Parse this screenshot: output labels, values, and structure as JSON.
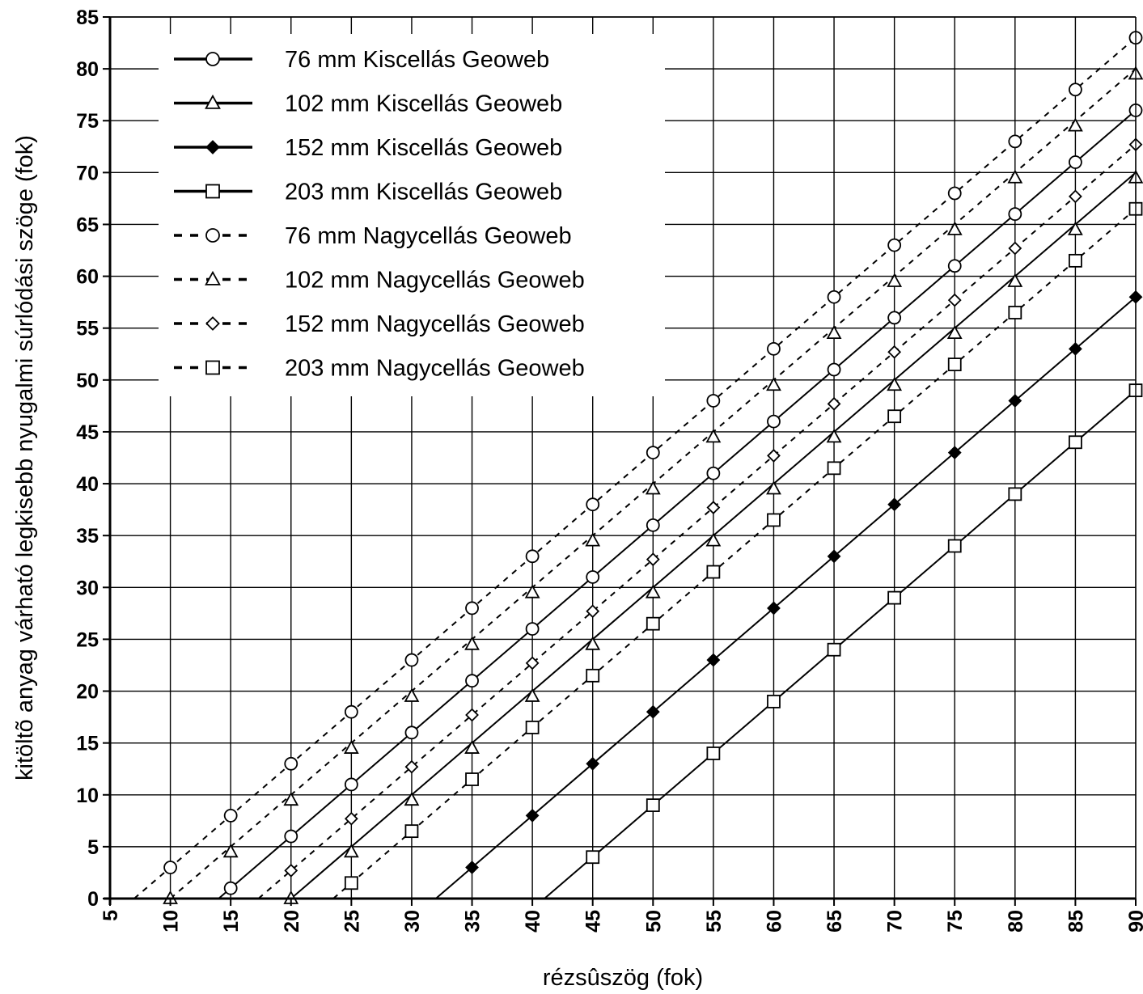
{
  "chart_data": {
    "type": "line",
    "title": "",
    "xlabel": "rézsûszög (fok)",
    "ylabel": "kitöltõ anyag várható legkisebb nyugalmi súrlódási szöge (fok)",
    "xlim": [
      5,
      90
    ],
    "ylim": [
      0,
      85
    ],
    "xticks": [
      5,
      10,
      15,
      20,
      25,
      30,
      35,
      40,
      45,
      50,
      55,
      60,
      65,
      70,
      75,
      80,
      85,
      90
    ],
    "yticks": [
      0,
      5,
      10,
      15,
      20,
      25,
      30,
      35,
      40,
      45,
      50,
      55,
      60,
      65,
      70,
      75,
      80,
      85
    ],
    "grid": true,
    "legend_position": "top-left",
    "series": [
      {
        "name": "76 mm Kiscellás Geoweb",
        "style": "solid",
        "marker": "circle",
        "fill": "open",
        "x": [
          15,
          20,
          25,
          30,
          35,
          40,
          45,
          50,
          55,
          60,
          65,
          70,
          75,
          80,
          85,
          90
        ],
        "y": [
          1,
          6,
          11,
          16,
          21,
          26,
          31,
          36,
          41,
          46,
          51,
          56,
          61,
          66,
          71,
          76
        ]
      },
      {
        "name": "102 mm Kiscellás Geoweb",
        "style": "solid",
        "marker": "triangle",
        "fill": "open",
        "x": [
          20,
          25,
          30,
          35,
          40,
          45,
          50,
          55,
          60,
          65,
          70,
          75,
          80,
          85,
          90
        ],
        "y": [
          0,
          4.5,
          9.5,
          14.5,
          19.5,
          24.5,
          29.5,
          34.5,
          39.5,
          44.5,
          49.5,
          54.5,
          59.5,
          64.5,
          69.5
        ]
      },
      {
        "name": "152 mm Kiscellás Geoweb",
        "style": "solid",
        "marker": "diamond",
        "fill": "filled",
        "x": [
          35,
          40,
          45,
          50,
          55,
          60,
          65,
          70,
          75,
          80,
          85,
          90
        ],
        "y": [
          3,
          8,
          13,
          18,
          23,
          28,
          33,
          38,
          43,
          48,
          53,
          58
        ]
      },
      {
        "name": "203 mm Kiscellás Geoweb",
        "style": "solid",
        "marker": "square",
        "fill": "open",
        "x": [
          45,
          50,
          55,
          60,
          65,
          70,
          75,
          80,
          85,
          90
        ],
        "y": [
          4,
          9,
          14,
          19,
          24,
          29,
          34,
          39,
          44,
          49
        ]
      },
      {
        "name": "76 mm Nagycellás Geoweb",
        "style": "dashed",
        "marker": "circle",
        "fill": "open",
        "x": [
          10,
          15,
          20,
          25,
          30,
          35,
          40,
          45,
          50,
          55,
          60,
          65,
          70,
          75,
          80,
          85,
          90
        ],
        "y": [
          3,
          8,
          13,
          18,
          23,
          28,
          33,
          38,
          43,
          48,
          53,
          58,
          63,
          68,
          73,
          78,
          83
        ]
      },
      {
        "name": "102 mm Nagycellás Geoweb",
        "style": "dashed",
        "marker": "triangle",
        "fill": "open",
        "x": [
          10,
          15,
          20,
          25,
          30,
          35,
          40,
          45,
          50,
          55,
          60,
          65,
          70,
          75,
          80,
          85,
          90
        ],
        "y": [
          0,
          4.5,
          9.5,
          14.5,
          19.5,
          24.5,
          29.5,
          34.5,
          39.5,
          44.5,
          49.5,
          54.5,
          59.5,
          64.5,
          69.5,
          74.5,
          79.5
        ]
      },
      {
        "name": "152 mm Nagycellás Geoweb",
        "style": "dashed",
        "marker": "diamond",
        "fill": "open",
        "x": [
          20,
          25,
          30,
          35,
          40,
          45,
          50,
          55,
          60,
          65,
          70,
          75,
          80,
          85,
          90
        ],
        "y": [
          2.7,
          7.7,
          12.7,
          17.7,
          22.7,
          27.7,
          32.7,
          37.7,
          42.7,
          47.7,
          52.7,
          57.7,
          62.7,
          67.7,
          72.7
        ]
      },
      {
        "name": "203 mm Nagycellás Geoweb",
        "style": "dashed",
        "marker": "square",
        "fill": "open",
        "x": [
          25,
          30,
          35,
          40,
          45,
          50,
          55,
          60,
          65,
          70,
          75,
          80,
          85,
          90
        ],
        "y": [
          1.5,
          6.5,
          11.5,
          16.5,
          21.5,
          26.5,
          31.5,
          36.5,
          41.5,
          46.5,
          51.5,
          56.5,
          61.5,
          66.5
        ]
      }
    ]
  }
}
